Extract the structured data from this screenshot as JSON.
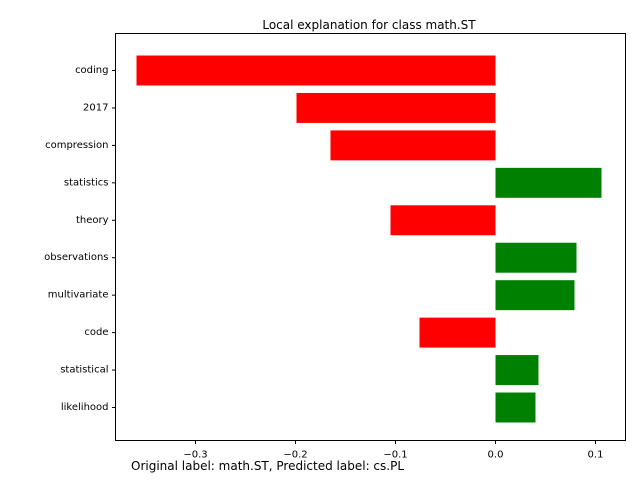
{
  "chart_data": {
    "type": "bar",
    "orientation": "horizontal",
    "title": "Local explanation for class math.ST",
    "categories": [
      "coding",
      "2017",
      "compression",
      "statistics",
      "theory",
      "observations",
      "multivariate",
      "code",
      "statistical",
      "likelihood"
    ],
    "values": [
      -0.359,
      -0.199,
      -0.165,
      0.106,
      -0.105,
      0.081,
      0.079,
      -0.076,
      0.043,
      0.04
    ],
    "xlim": [
      -0.38,
      0.13
    ],
    "xticks": [
      -0.3,
      -0.2,
      -0.1,
      0.0,
      0.1
    ],
    "xtick_labels": [
      "−0.3",
      "−0.2",
      "−0.1",
      "0.0",
      "0.1"
    ],
    "colors": {
      "positive": "#008000",
      "negative": "#ff0000"
    },
    "grid": false
  },
  "footer": {
    "caption": "Original label: math.ST, Predicted label: cs.PL"
  }
}
